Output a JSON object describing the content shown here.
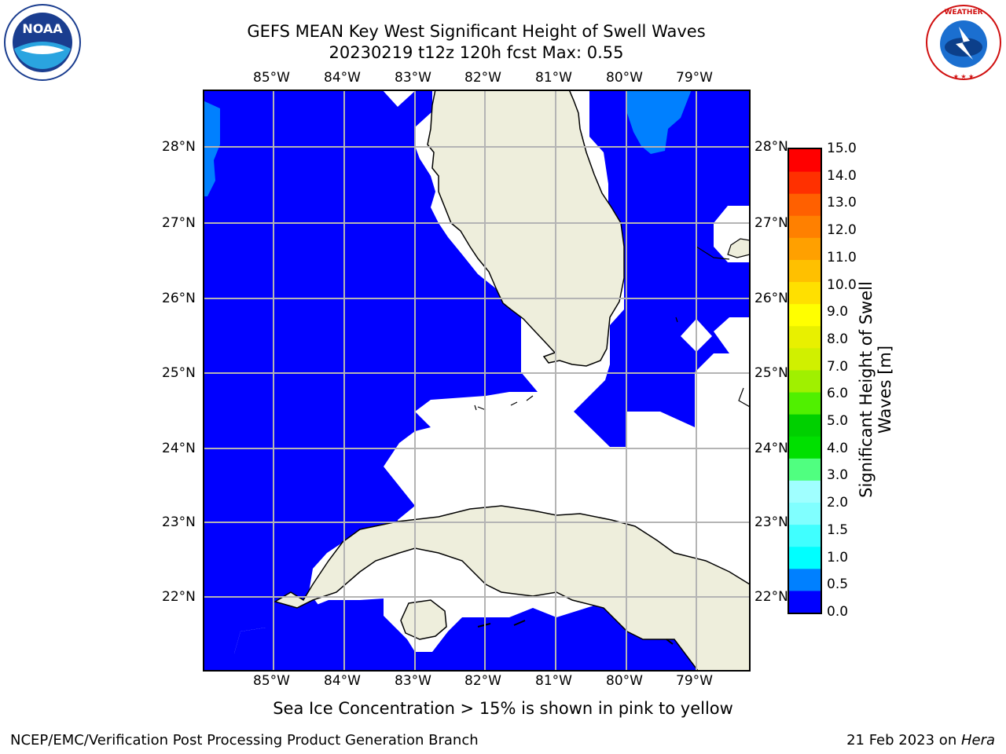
{
  "title": {
    "line1": "GEFS MEAN Key West Significant Height of Swell Waves",
    "line2": "20230219 t12z 120h fcst   Max: 0.55"
  },
  "logos": {
    "left": {
      "icon": "noaa-logo",
      "text": "NOAA"
    },
    "right": {
      "icon": "nws-logo",
      "text": "NATIONAL WEATHER SERVICE"
    }
  },
  "map": {
    "lon_labels": [
      "85°W",
      "84°W",
      "83°W",
      "82°W",
      "81°W",
      "80°W",
      "79°W"
    ],
    "lat_labels": [
      "28°N",
      "27°N",
      "26°N",
      "25°N",
      "24°N",
      "23°N",
      "22°N"
    ],
    "colors": {
      "ocean_swell": "#0000ff",
      "swell_higher": "#0080ff",
      "land": "#eeeedc",
      "grid": "#b4b4b4"
    }
  },
  "colorbar": {
    "ticks": [
      "15.0",
      "14.0",
      "13.0",
      "12.0",
      "11.0",
      "10.0",
      "9.0",
      "8.0",
      "7.0",
      "6.0",
      "5.0",
      "4.0",
      "3.0",
      "2.0",
      "1.5",
      "1.0",
      "0.5",
      "0.0"
    ],
    "colors_bottom_to_top": [
      "#0000ff",
      "#0080ff",
      "#00ffff",
      "#40ffff",
      "#80ffff",
      "#a0ffff",
      "#50ff80",
      "#00e000",
      "#00d000",
      "#50f000",
      "#a0f000",
      "#d0f000",
      "#e8f000",
      "#ffff00",
      "#ffe000",
      "#ffc000",
      "#ffa000",
      "#ff8000",
      "#ff6000",
      "#ff3000",
      "#ff0000"
    ],
    "label_line1": "Significant Height of Swell",
    "label_line2": "Waves [m]"
  },
  "footer": {
    "note": "Sea Ice Concentration > 15% is shown in pink to yellow",
    "left": "NCEP/EMC/Verification Post Processing Product Generation Branch",
    "right_date": "21 Feb 2023 on ",
    "right_host": "Hera"
  }
}
